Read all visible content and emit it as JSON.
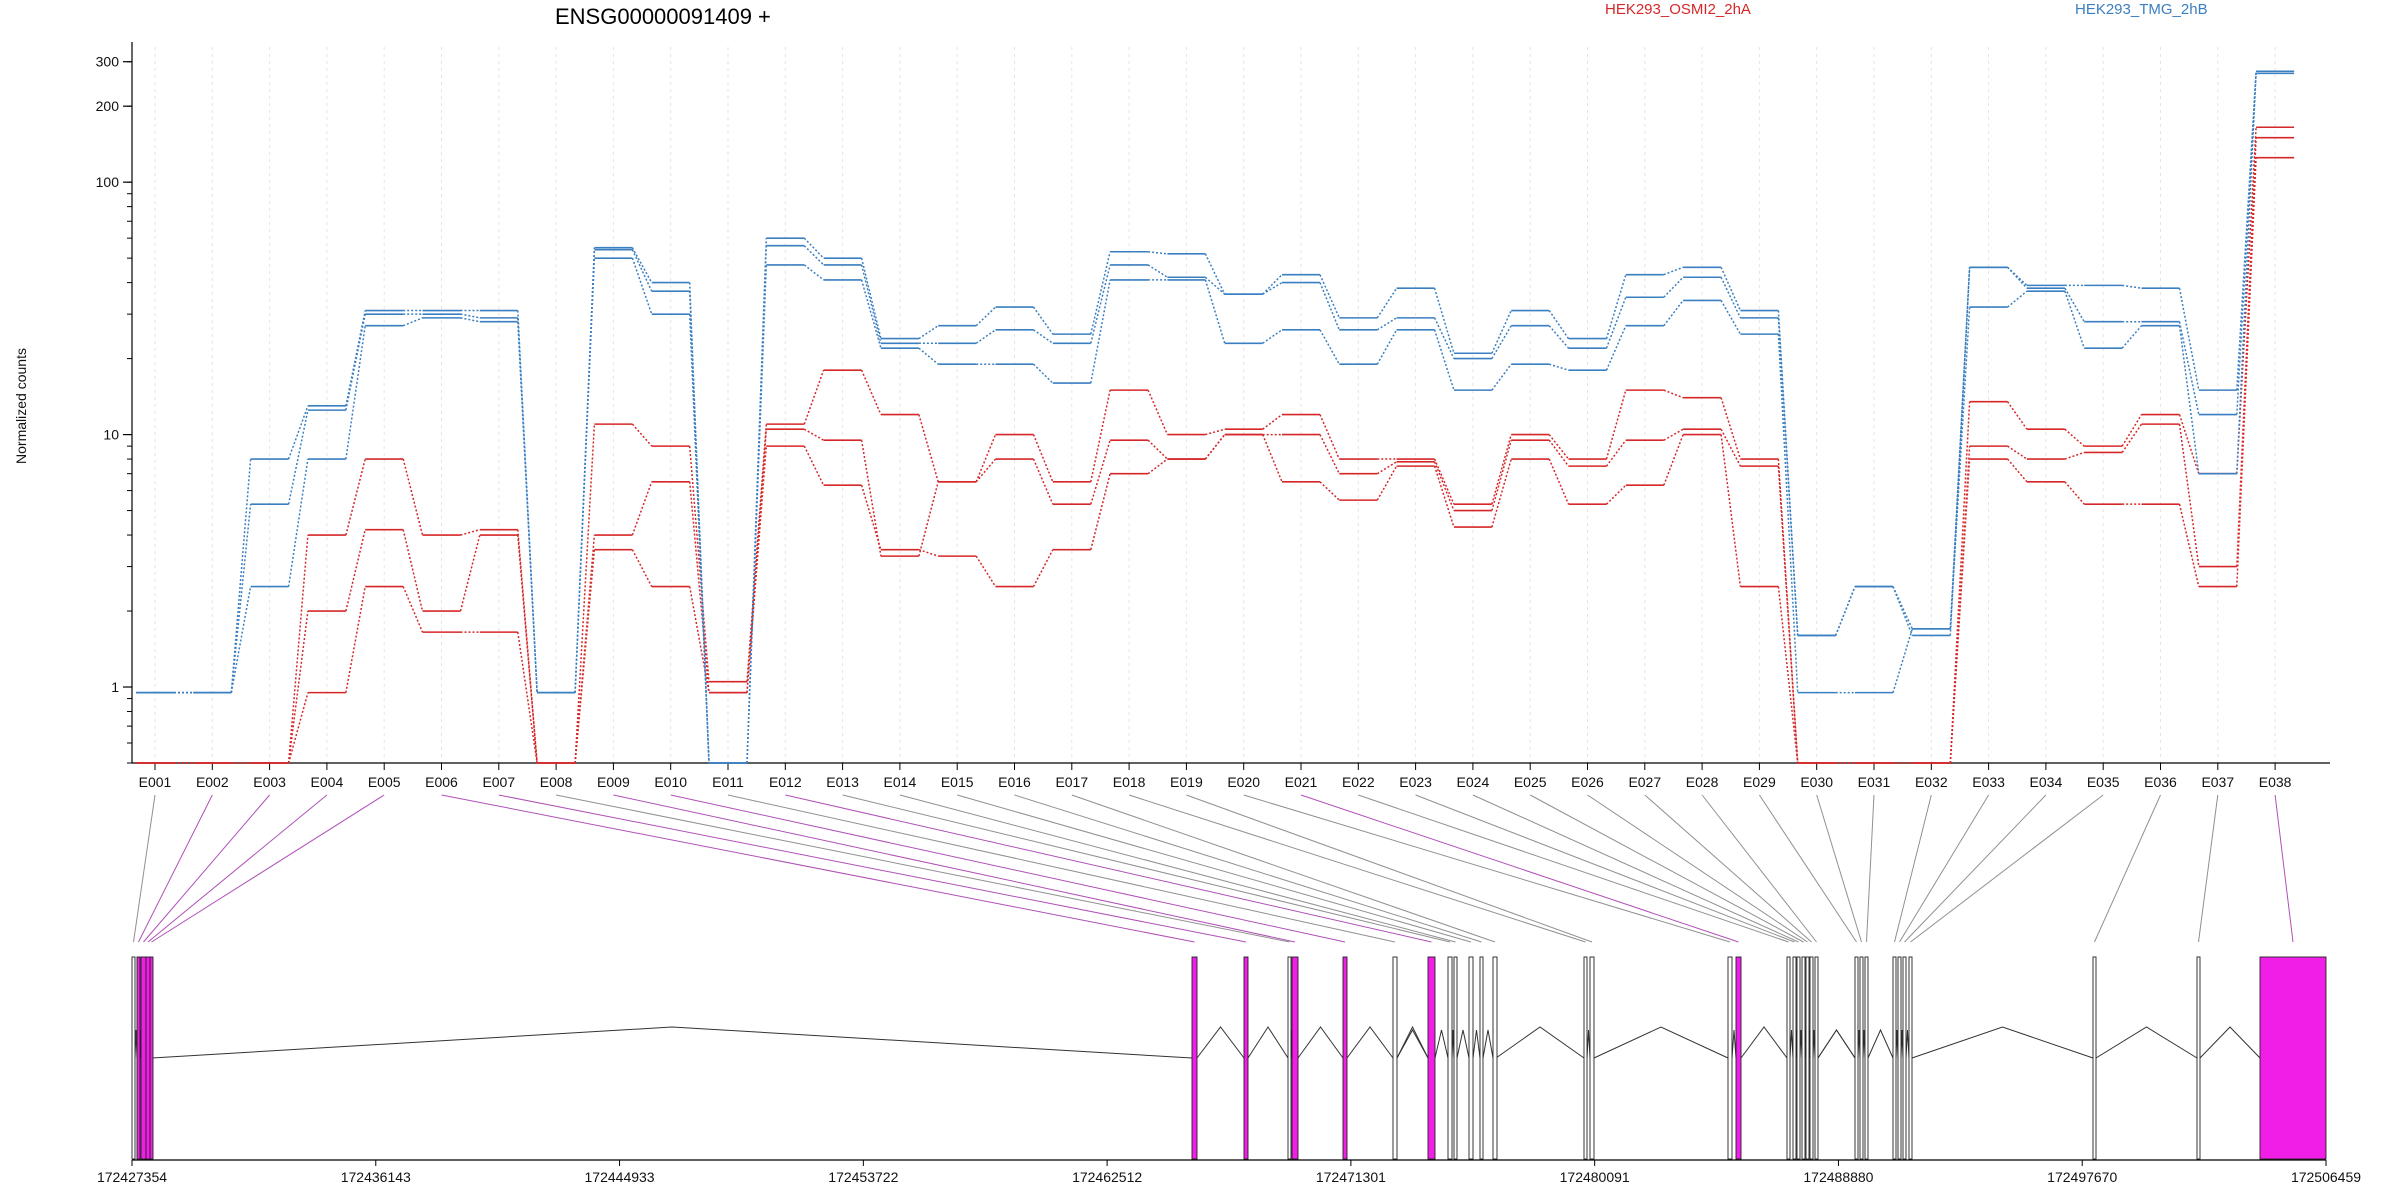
{
  "chart_data": {
    "type": "line",
    "title": "ENSG00000091409 +",
    "ylabel": "Normalized counts",
    "yscale": "log",
    "ylim": [
      0.5,
      340
    ],
    "yticks": [
      1,
      10,
      100,
      200,
      300
    ],
    "categories": [
      "E001",
      "E002",
      "E003",
      "E004",
      "E005",
      "E006",
      "E007",
      "E008",
      "E009",
      "E010",
      "E011",
      "E012",
      "E013",
      "E014",
      "E015",
      "E016",
      "E017",
      "E018",
      "E019",
      "E020",
      "E021",
      "E022",
      "E023",
      "E024",
      "E025",
      "E026",
      "E027",
      "E028",
      "E029",
      "E030",
      "E031",
      "E032",
      "E033",
      "E034",
      "E035",
      "E036",
      "E037",
      "E038"
    ],
    "legend": [
      {
        "label": "HEK293_OSMI2_2hA",
        "color": "#d62728"
      },
      {
        "label": "HEK293_TMG_2hB",
        "color": "#3a7fc1"
      }
    ],
    "series": [
      {
        "group": "HEK293_OSMI2_2hA",
        "values": [
          0.5,
          0.5,
          0.5,
          4.0,
          8.0,
          4.0,
          4.2,
          0.5,
          11.0,
          9.0,
          1.05,
          11.0,
          18.0,
          12.0,
          6.5,
          10.0,
          6.5,
          15.0,
          10.0,
          10.5,
          12.0,
          8.0,
          8.0,
          5.3,
          10.0,
          8.0,
          15.0,
          14.0,
          8.0,
          0.5,
          0.5,
          0.5,
          13.5,
          10.5,
          9.0,
          12.0,
          7.0,
          165
        ]
      },
      {
        "group": "HEK293_OSMI2_2hA",
        "values": [
          0.5,
          0.5,
          0.5,
          2.0,
          4.2,
          2.0,
          4.0,
          0.5,
          4.0,
          6.5,
          0.95,
          10.5,
          9.5,
          3.3,
          6.5,
          8.0,
          5.3,
          9.5,
          8.0,
          10.0,
          10.0,
          7.0,
          7.8,
          5.0,
          9.5,
          7.5,
          9.5,
          10.5,
          7.5,
          0.5,
          0.5,
          0.5,
          9.0,
          8.0,
          8.5,
          11.0,
          3.0,
          150
        ]
      },
      {
        "group": "HEK293_OSMI2_2hA",
        "values": [
          0.5,
          0.5,
          0.5,
          0.95,
          2.5,
          1.65,
          1.65,
          0.5,
          3.5,
          2.5,
          0.95,
          9.0,
          6.3,
          3.5,
          3.3,
          2.5,
          3.5,
          7.0,
          8.0,
          10.0,
          6.5,
          5.5,
          7.5,
          4.3,
          8.0,
          5.3,
          6.3,
          10.0,
          2.5,
          0.5,
          0.5,
          0.5,
          8.0,
          6.5,
          5.3,
          5.3,
          2.5,
          125
        ]
      },
      {
        "group": "HEK293_TMG_2hB",
        "values": [
          0.95,
          0.95,
          8.0,
          13.0,
          31.0,
          31.0,
          31.0,
          0.95,
          55.0,
          40.0,
          0.5,
          60.0,
          50.0,
          24.0,
          27.0,
          32.0,
          25.0,
          53.0,
          52.0,
          36.0,
          43.0,
          29.0,
          38.0,
          21.0,
          31.0,
          24.0,
          43.0,
          46.0,
          31.0,
          1.6,
          2.5,
          1.6,
          46.0,
          39.0,
          39.0,
          38.0,
          15.0,
          275
        ]
      },
      {
        "group": "HEK293_TMG_2hB",
        "values": [
          0.95,
          0.95,
          5.3,
          12.5,
          30.0,
          30.0,
          29.0,
          0.95,
          54.0,
          37.0,
          0.5,
          56.0,
          47.0,
          23.0,
          23.0,
          26.0,
          23.0,
          47.0,
          42.0,
          36.0,
          40.0,
          26.0,
          29.0,
          20.0,
          27.0,
          22.0,
          35.0,
          42.0,
          29.0,
          1.6,
          2.5,
          1.7,
          46.0,
          38.0,
          28.0,
          28.0,
          12.0,
          275
        ]
      },
      {
        "group": "HEK293_TMG_2hB",
        "values": [
          0.95,
          0.95,
          2.5,
          8.0,
          27.0,
          29.0,
          28.0,
          0.95,
          50.0,
          30.0,
          0.5,
          47.0,
          41.0,
          22.0,
          19.0,
          19.0,
          16.0,
          41.0,
          41.0,
          23.0,
          26.0,
          19.0,
          26.0,
          15.0,
          19.0,
          18.0,
          27.0,
          34.0,
          25.0,
          0.95,
          0.95,
          1.7,
          32.0,
          37.0,
          22.0,
          27.0,
          7.0,
          270
        ]
      }
    ],
    "genomic_axis": {
      "ticks": [
        "172427354",
        "172436143",
        "172444933",
        "172453722",
        "172462512",
        "172471301",
        "172480091",
        "172488880",
        "172497670",
        "172506459"
      ]
    },
    "exon_colors": {
      "highlight": "#f01ee6",
      "normal": "#ffffff",
      "connector_highlight": "#b050b8",
      "connector_normal": "#909090"
    }
  }
}
